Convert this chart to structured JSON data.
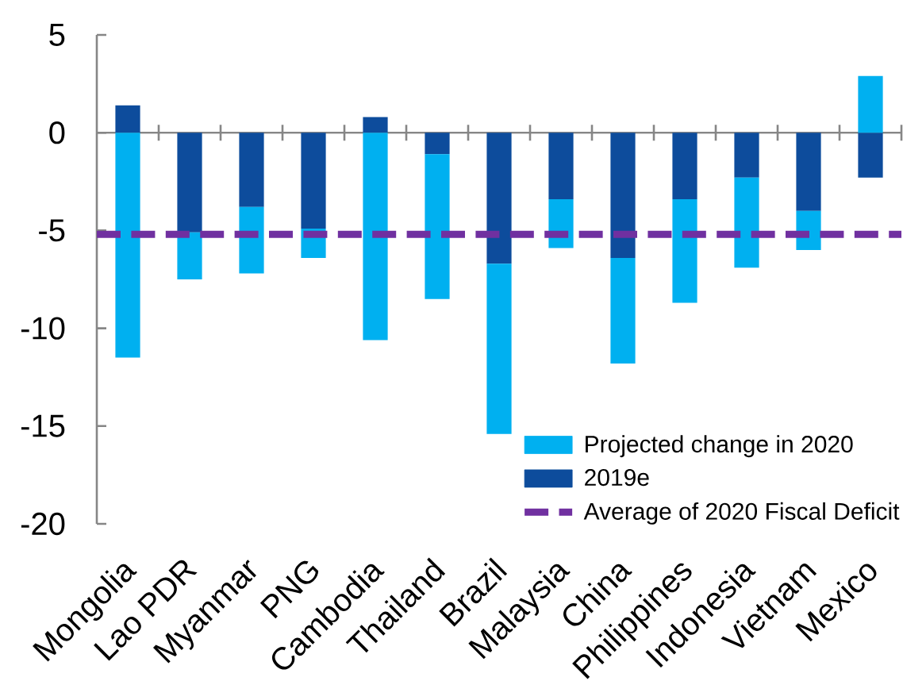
{
  "chart_data": {
    "type": "bar",
    "stacked": true,
    "categories": [
      "Mongolia",
      "Lao PDR",
      "Myanmar",
      "PNG",
      "Cambodia",
      "Thailand",
      "Brazil",
      "Malaysia",
      "China",
      "Philippines",
      "Indonesia",
      "Vietnam",
      "Mexico"
    ],
    "series": [
      {
        "name": "2019e",
        "color": "#0d4c9c",
        "values": [
          1.4,
          -5.1,
          -3.8,
          -4.9,
          0.8,
          -1.1,
          -6.7,
          -3.4,
          -6.4,
          -3.4,
          -2.3,
          -4.0,
          -2.3
        ]
      },
      {
        "name": "Projected change in 2020",
        "color": "#00b0f0",
        "values": [
          -11.5,
          -2.4,
          -3.4,
          -1.5,
          -10.6,
          -7.4,
          -8.7,
          -2.5,
          -5.4,
          -5.3,
          -4.6,
          -2.0,
          2.9
        ]
      }
    ],
    "ref_lines": [
      {
        "axis": "y",
        "value": -5.2,
        "label": "Average of 2020 Fiscal Deficit",
        "color": "#7030a0",
        "line_style": "dashed"
      }
    ],
    "ylim": [
      -20,
      5
    ],
    "yticks": [
      -20,
      -15,
      -10,
      -5,
      0,
      5
    ],
    "legend": "bottom right"
  }
}
